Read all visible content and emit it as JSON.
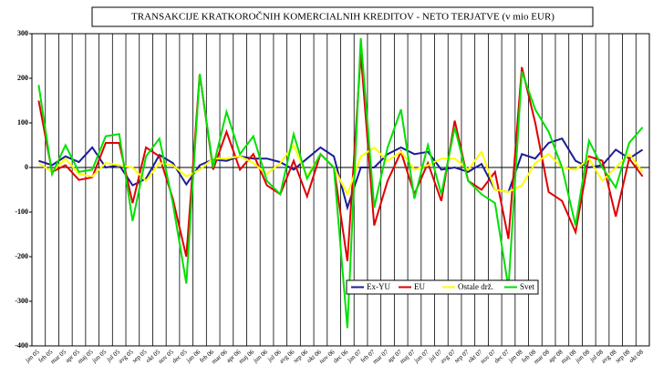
{
  "chart_data": {
    "type": "line",
    "title": "TRANSAKCIJE KRATKOROČNIH KOMERCIALNIH KREDITOV - NETO TERJATVE (v mio EUR)",
    "categories": [
      "jan 05",
      "feb 05",
      "mar 05",
      "apr 05",
      "maj 05",
      "jun 05",
      "jul 05",
      "avg 05",
      "sep 05",
      "okt 05",
      "nov 05",
      "dec 05",
      "jan 06",
      "feb 06",
      "mar 06",
      "apr 06",
      "maj 06",
      "jun 06",
      "jul 06",
      "avg 06",
      "sep 06",
      "okt 06",
      "nov 06",
      "dec 06",
      "jan 07",
      "feb 07",
      "mar 07",
      "apr 07",
      "maj 07",
      "jun 07",
      "jul 07",
      "avg 07",
      "sep 07",
      "okt 07",
      "nov 07",
      "dec 07",
      "jan 08",
      "feb 08",
      "mar 08",
      "apr 08",
      "maj 08",
      "jun 08",
      "jul 08",
      "avg 08",
      "sep 08",
      "okt 08"
    ],
    "series": [
      {
        "name": "Ex-YU",
        "color": "#1c1c96",
        "values": [
          15,
          5,
          25,
          12,
          45,
          0,
          5,
          -40,
          -25,
          28,
          10,
          -38,
          5,
          18,
          15,
          25,
          20,
          20,
          12,
          -5,
          20,
          45,
          25,
          -90,
          0,
          0,
          30,
          45,
          30,
          35,
          -5,
          0,
          -10,
          8,
          -50,
          -55,
          30,
          20,
          55,
          65,
          15,
          0,
          5,
          40,
          20,
          40
        ]
      },
      {
        "name": "EU",
        "color": "#e00000",
        "values": [
          150,
          -10,
          5,
          -28,
          -22,
          55,
          55,
          -80,
          45,
          25,
          -70,
          -200,
          210,
          -5,
          80,
          -5,
          30,
          -40,
          -60,
          15,
          -65,
          30,
          0,
          -210,
          255,
          -130,
          -30,
          35,
          -60,
          10,
          -75,
          105,
          -30,
          -50,
          -10,
          -160,
          225,
          100,
          -55,
          -75,
          -145,
          25,
          15,
          -110,
          20,
          -20
        ]
      },
      {
        "name": "Ostale drž.",
        "color": "#ffff00",
        "values": [
          10,
          -10,
          20,
          -15,
          -20,
          10,
          5,
          0,
          -30,
          10,
          5,
          -20,
          -5,
          20,
          20,
          25,
          10,
          -15,
          10,
          50,
          -20,
          30,
          0,
          -60,
          25,
          45,
          15,
          35,
          -5,
          5,
          20,
          20,
          -5,
          35,
          -50,
          -55,
          -40,
          10,
          30,
          0,
          -5,
          20,
          -30,
          0,
          30,
          -10
        ]
      },
      {
        "name": "Svet",
        "color": "#00e000",
        "values": [
          185,
          -15,
          50,
          -10,
          -5,
          70,
          75,
          -120,
          25,
          65,
          -80,
          -260,
          210,
          0,
          125,
          30,
          70,
          -30,
          -60,
          75,
          -25,
          30,
          0,
          -360,
          290,
          -90,
          45,
          130,
          -70,
          50,
          -60,
          90,
          -30,
          -60,
          -80,
          -270,
          215,
          130,
          80,
          0,
          -130,
          60,
          0,
          -45,
          55,
          90
        ]
      }
    ],
    "ylim": [
      -400,
      300
    ],
    "yticks": [
      -400,
      -300,
      -200,
      -100,
      0,
      100,
      200,
      300
    ],
    "grid": true
  }
}
